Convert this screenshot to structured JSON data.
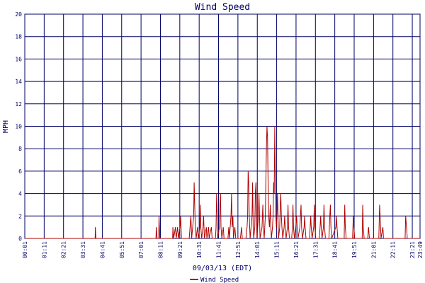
{
  "chart_data": {
    "type": "line",
    "title": "Wind Speed",
    "xlabel": "09/03/13 (EDT)",
    "ylabel": "MPH",
    "ylim": [
      0,
      20
    ],
    "yticks": [
      "0",
      "2",
      "4",
      "6",
      "8",
      "10",
      "12",
      "14",
      "16",
      "18",
      "20"
    ],
    "xlim": [
      "00:01",
      "23:49"
    ],
    "xticks": [
      "00:01",
      "01:11",
      "02:21",
      "03:31",
      "04:41",
      "05:51",
      "07:01",
      "08:11",
      "09:21",
      "10:31",
      "11:41",
      "12:51",
      "14:01",
      "15:11",
      "16:21",
      "17:31",
      "18:41",
      "19:51",
      "21:01",
      "22:11",
      "23:21",
      "23:49"
    ],
    "grid": true,
    "legend_position": "bottom-center",
    "colors": {
      "series": "#b00000",
      "grid": "#000066",
      "text": "#000066",
      "background": "#ffffff"
    },
    "series": [
      {
        "name": "Wind Speed",
        "points": [
          [
            "00:01",
            0
          ],
          [
            "04:15",
            0
          ],
          [
            "04:16",
            1
          ],
          [
            "04:18",
            0
          ],
          [
            "07:55",
            0
          ],
          [
            "07:56",
            1
          ],
          [
            "07:59",
            0
          ],
          [
            "08:05",
            0
          ],
          [
            "08:06",
            2
          ],
          [
            "08:09",
            0
          ],
          [
            "08:55",
            0
          ],
          [
            "08:56",
            1
          ],
          [
            "08:59",
            0
          ],
          [
            "09:05",
            1
          ],
          [
            "09:08",
            0
          ],
          [
            "09:13",
            1
          ],
          [
            "09:16",
            0
          ],
          [
            "09:22",
            1
          ],
          [
            "09:24",
            2
          ],
          [
            "09:27",
            0
          ],
          [
            "09:55",
            0
          ],
          [
            "09:58",
            1
          ],
          [
            "10:01",
            2
          ],
          [
            "10:04",
            0
          ],
          [
            "10:11",
            2
          ],
          [
            "10:13",
            5
          ],
          [
            "10:15",
            3
          ],
          [
            "10:17",
            1
          ],
          [
            "10:20",
            0
          ],
          [
            "10:25",
            1
          ],
          [
            "10:28",
            0
          ],
          [
            "10:33",
            1
          ],
          [
            "10:35",
            3
          ],
          [
            "10:37",
            1
          ],
          [
            "10:40",
            0
          ],
          [
            "10:45",
            1
          ],
          [
            "10:47",
            2
          ],
          [
            "10:50",
            0
          ],
          [
            "10:57",
            1
          ],
          [
            "10:59",
            0
          ],
          [
            "11:05",
            1
          ],
          [
            "11:07",
            0
          ],
          [
            "11:15",
            1
          ],
          [
            "11:18",
            0
          ],
          [
            "11:30",
            0
          ],
          [
            "11:32",
            1
          ],
          [
            "11:34",
            4
          ],
          [
            "11:36",
            2
          ],
          [
            "11:38",
            0
          ],
          [
            "11:44",
            1
          ],
          [
            "11:46",
            3
          ],
          [
            "11:48",
            4
          ],
          [
            "11:50",
            1
          ],
          [
            "11:53",
            0
          ],
          [
            "11:58",
            1
          ],
          [
            "12:01",
            0
          ],
          [
            "12:15",
            0
          ],
          [
            "12:18",
            1
          ],
          [
            "12:20",
            0
          ],
          [
            "12:26",
            2
          ],
          [
            "12:28",
            4
          ],
          [
            "12:30",
            1
          ],
          [
            "12:33",
            2
          ],
          [
            "12:35",
            0
          ],
          [
            "12:40",
            1
          ],
          [
            "12:43",
            0
          ],
          [
            "13:00",
            0
          ],
          [
            "13:04",
            1
          ],
          [
            "13:07",
            0
          ],
          [
            "13:20",
            0
          ],
          [
            "13:24",
            1
          ],
          [
            "13:26",
            2
          ],
          [
            "13:28",
            6
          ],
          [
            "13:30",
            5
          ],
          [
            "13:32",
            2
          ],
          [
            "13:35",
            0
          ],
          [
            "13:42",
            2
          ],
          [
            "13:44",
            5
          ],
          [
            "13:46",
            1
          ],
          [
            "13:48",
            0
          ],
          [
            "13:52",
            1
          ],
          [
            "13:54",
            4
          ],
          [
            "13:56",
            5
          ],
          [
            "13:58",
            2
          ],
          [
            "14:00",
            0
          ],
          [
            "14:05",
            2
          ],
          [
            "14:07",
            4
          ],
          [
            "14:09",
            2
          ],
          [
            "14:11",
            0
          ],
          [
            "14:18",
            1
          ],
          [
            "14:21",
            3
          ],
          [
            "14:23",
            1
          ],
          [
            "14:26",
            0
          ],
          [
            "14:30",
            2
          ],
          [
            "14:32",
            5
          ],
          [
            "14:34",
            8
          ],
          [
            "14:36",
            10
          ],
          [
            "14:38",
            9
          ],
          [
            "14:40",
            5
          ],
          [
            "14:42",
            2
          ],
          [
            "14:45",
            1
          ],
          [
            "14:48",
            3
          ],
          [
            "14:50",
            1
          ],
          [
            "14:52",
            0
          ],
          [
            "14:56",
            1
          ],
          [
            "14:58",
            2
          ],
          [
            "15:00",
            5
          ],
          [
            "15:02",
            4
          ],
          [
            "15:04",
            10
          ],
          [
            "15:06",
            5
          ],
          [
            "15:08",
            2
          ],
          [
            "15:10",
            1
          ],
          [
            "15:12",
            2
          ],
          [
            "15:14",
            4
          ],
          [
            "15:16",
            2
          ],
          [
            "15:18",
            0
          ],
          [
            "15:22",
            1
          ],
          [
            "15:24",
            3
          ],
          [
            "15:26",
            4
          ],
          [
            "15:28",
            2
          ],
          [
            "15:30",
            1
          ],
          [
            "15:33",
            0
          ],
          [
            "15:38",
            1
          ],
          [
            "15:40",
            2
          ],
          [
            "15:42",
            1
          ],
          [
            "15:45",
            0
          ],
          [
            "15:50",
            1
          ],
          [
            "15:52",
            3
          ],
          [
            "15:54",
            1
          ],
          [
            "15:57",
            0
          ],
          [
            "16:05",
            0
          ],
          [
            "16:08",
            1
          ],
          [
            "16:10",
            3
          ],
          [
            "16:12",
            1
          ],
          [
            "16:15",
            0
          ],
          [
            "16:20",
            1
          ],
          [
            "16:23",
            2
          ],
          [
            "16:25",
            1
          ],
          [
            "16:28",
            0
          ],
          [
            "16:35",
            1
          ],
          [
            "16:37",
            2
          ],
          [
            "16:39",
            3
          ],
          [
            "16:41",
            1
          ],
          [
            "16:44",
            0
          ],
          [
            "16:50",
            1
          ],
          [
            "16:52",
            2
          ],
          [
            "16:54",
            1
          ],
          [
            "16:57",
            0
          ],
          [
            "17:10",
            0
          ],
          [
            "17:12",
            1
          ],
          [
            "17:14",
            2
          ],
          [
            "17:16",
            1
          ],
          [
            "17:19",
            0
          ],
          [
            "17:25",
            1
          ],
          [
            "17:27",
            3
          ],
          [
            "17:29",
            1
          ],
          [
            "17:32",
            0
          ],
          [
            "17:45",
            0
          ],
          [
            "17:48",
            1
          ],
          [
            "17:50",
            2
          ],
          [
            "17:52",
            1
          ],
          [
            "17:55",
            0
          ],
          [
            "18:00",
            1
          ],
          [
            "18:02",
            3
          ],
          [
            "18:04",
            1
          ],
          [
            "18:07",
            0
          ],
          [
            "18:20",
            0
          ],
          [
            "18:23",
            2
          ],
          [
            "18:25",
            3
          ],
          [
            "18:27",
            1
          ],
          [
            "18:30",
            0
          ],
          [
            "18:45",
            1
          ],
          [
            "18:47",
            2
          ],
          [
            "18:49",
            1
          ],
          [
            "18:52",
            0
          ],
          [
            "19:15",
            0
          ],
          [
            "19:17",
            3
          ],
          [
            "19:19",
            1
          ],
          [
            "19:22",
            0
          ],
          [
            "19:45",
            0
          ],
          [
            "19:48",
            2
          ],
          [
            "19:50",
            1
          ],
          [
            "19:53",
            0
          ],
          [
            "20:20",
            0
          ],
          [
            "20:22",
            3
          ],
          [
            "20:24",
            1
          ],
          [
            "20:27",
            0
          ],
          [
            "20:40",
            0
          ],
          [
            "20:43",
            1
          ],
          [
            "20:46",
            0
          ],
          [
            "21:20",
            0
          ],
          [
            "21:23",
            3
          ],
          [
            "21:25",
            2
          ],
          [
            "21:28",
            0
          ],
          [
            "21:35",
            1
          ],
          [
            "21:37",
            0
          ],
          [
            "22:55",
            0
          ],
          [
            "22:57",
            2
          ],
          [
            "23:00",
            1
          ],
          [
            "23:03",
            0
          ],
          [
            "23:49",
            0
          ]
        ]
      }
    ]
  }
}
